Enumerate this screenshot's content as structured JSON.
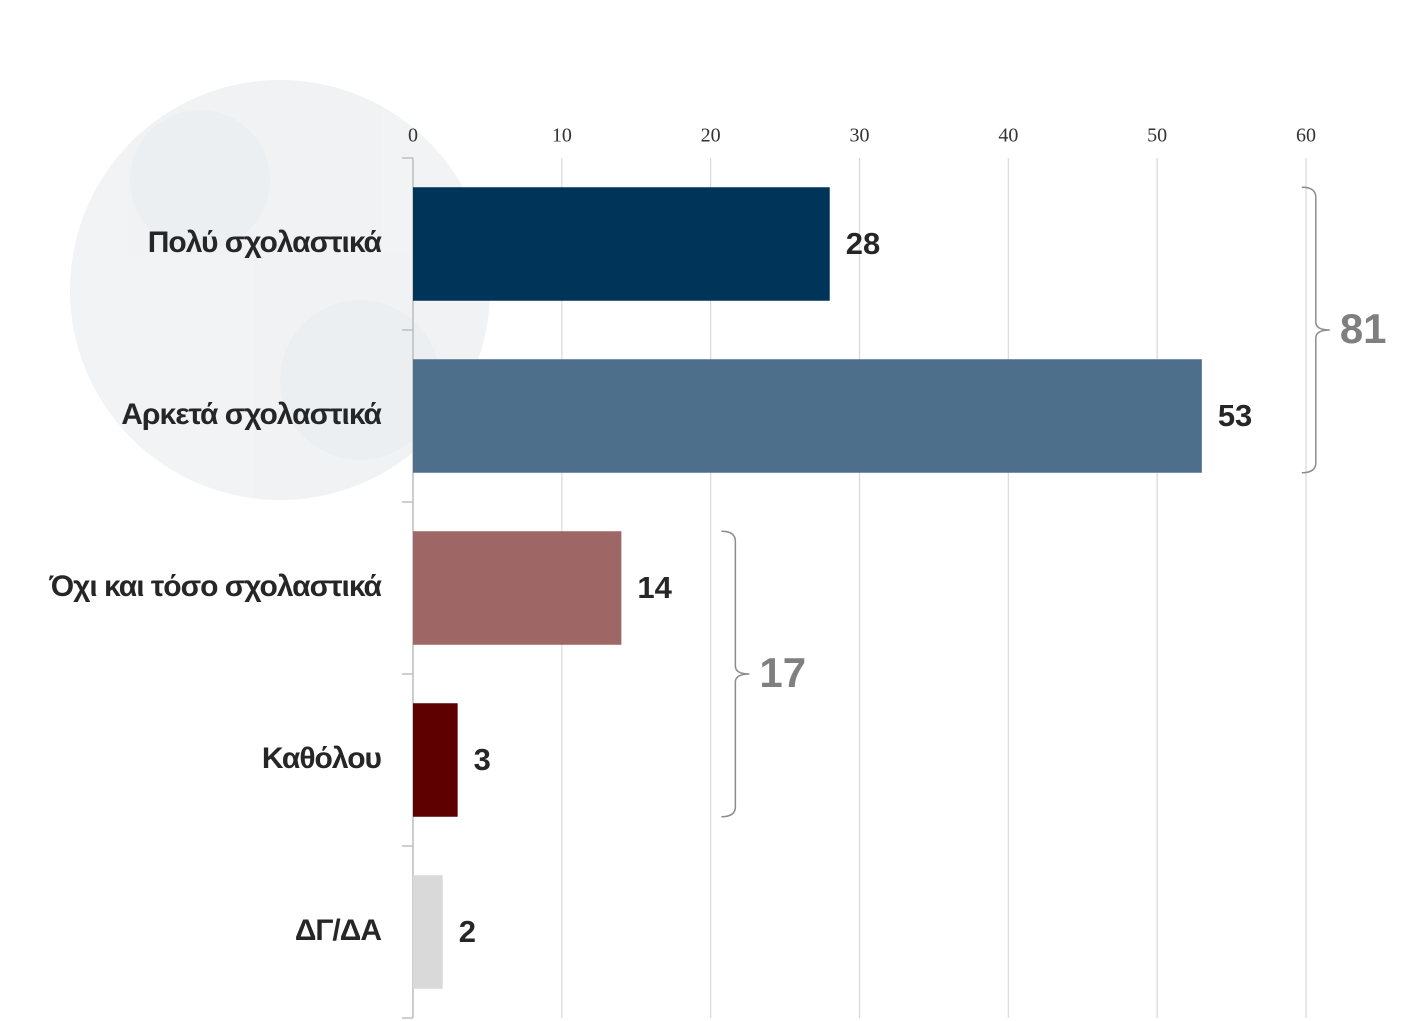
{
  "chart_data": {
    "type": "bar",
    "orientation": "horizontal",
    "categories": [
      "Πολύ σχολαστικά",
      "Αρκετά σχολαστικά",
      "Όχι και τόσο σχολαστικά",
      "Καθόλου",
      "ΔΓ/ΔΑ"
    ],
    "values": [
      28,
      53,
      14,
      3,
      2
    ],
    "colors": [
      "#003459",
      "#4d6f8b",
      "#9e6664",
      "#5e0000",
      "#d9d9d9"
    ],
    "xlim": [
      0,
      60
    ],
    "xticks": [
      0,
      10,
      20,
      30,
      40,
      50,
      60
    ],
    "grid": true,
    "annotations": [
      {
        "value": 81,
        "categories": [
          0,
          1
        ]
      },
      {
        "value": 17,
        "categories": [
          2,
          3
        ]
      }
    ]
  }
}
